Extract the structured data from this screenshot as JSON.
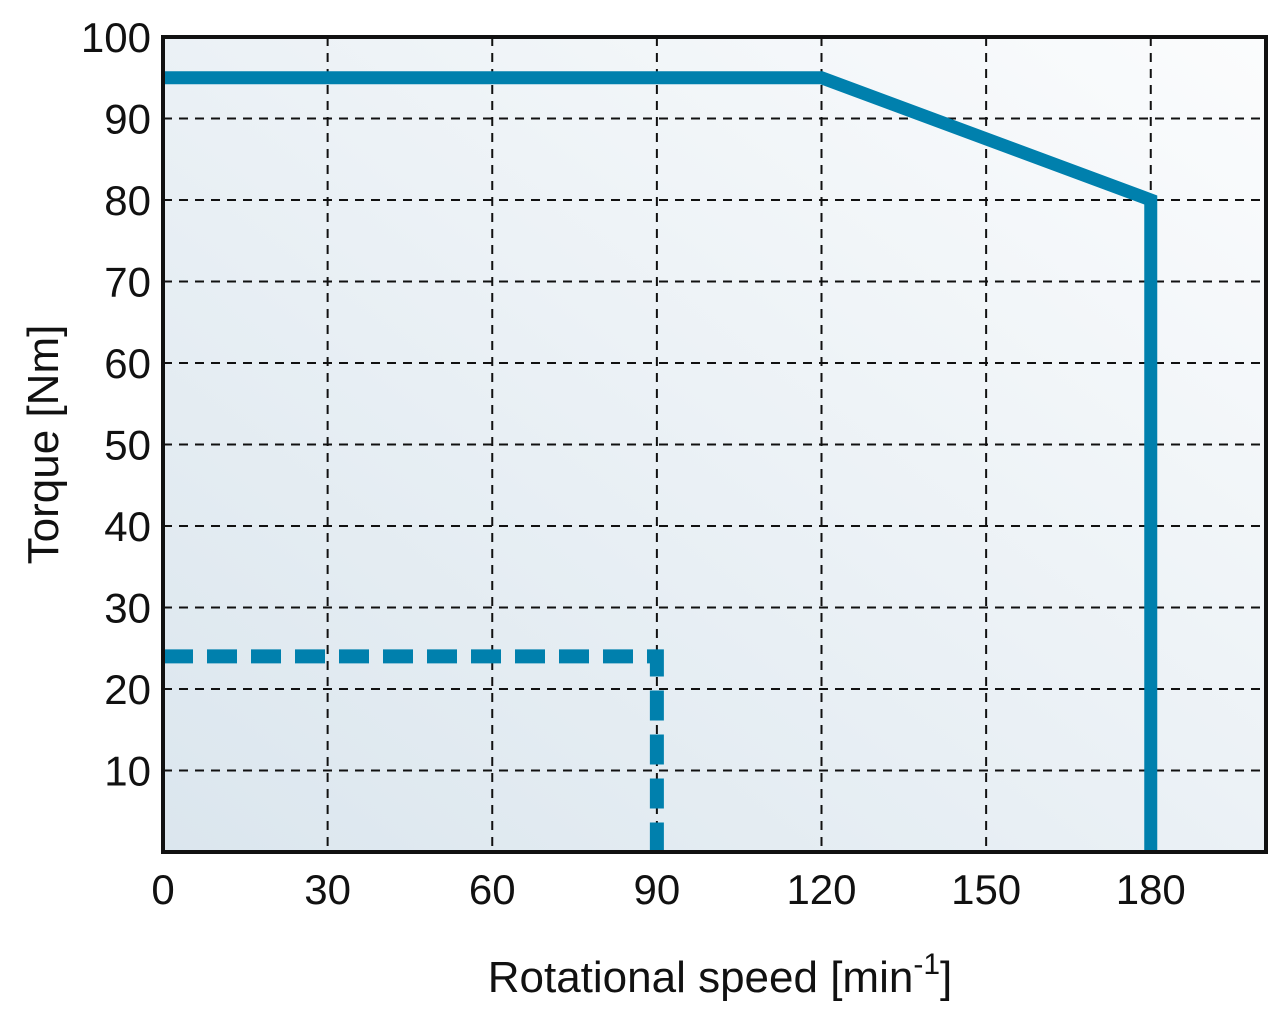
{
  "chart_data": {
    "type": "line",
    "title": "",
    "xlabel": "Rotational speed [min",
    "xlabel_sup": "-1",
    "xlabel_suffix": "]",
    "ylabel": "Torque [Nm]",
    "xlim": [
      0,
      201
    ],
    "ylim": [
      0,
      100
    ],
    "x_ticks": [
      0,
      30,
      60,
      90,
      120,
      150,
      180
    ],
    "x_tick_labels": [
      "0",
      "30",
      "60",
      "90",
      "120",
      "150",
      "180"
    ],
    "y_ticks": [
      10,
      20,
      30,
      40,
      50,
      60,
      70,
      80,
      90,
      100
    ],
    "y_tick_labels": [
      "10",
      "20",
      "30",
      "40",
      "50",
      "60",
      "70",
      "80",
      "90",
      "100"
    ],
    "grid": true,
    "colors": {
      "series": "#0080ad",
      "grid": "#111111",
      "frame": "#111111",
      "bg_light": "#fbfcfd",
      "bg_dark": "#dbe6ee"
    },
    "series": [
      {
        "style": "solid",
        "points": [
          [
            0,
            95
          ],
          [
            120,
            95
          ],
          [
            180,
            80
          ],
          [
            180,
            0
          ]
        ]
      },
      {
        "style": "dashed",
        "points": [
          [
            0,
            24
          ],
          [
            90,
            24
          ],
          [
            90,
            0
          ]
        ]
      }
    ]
  }
}
